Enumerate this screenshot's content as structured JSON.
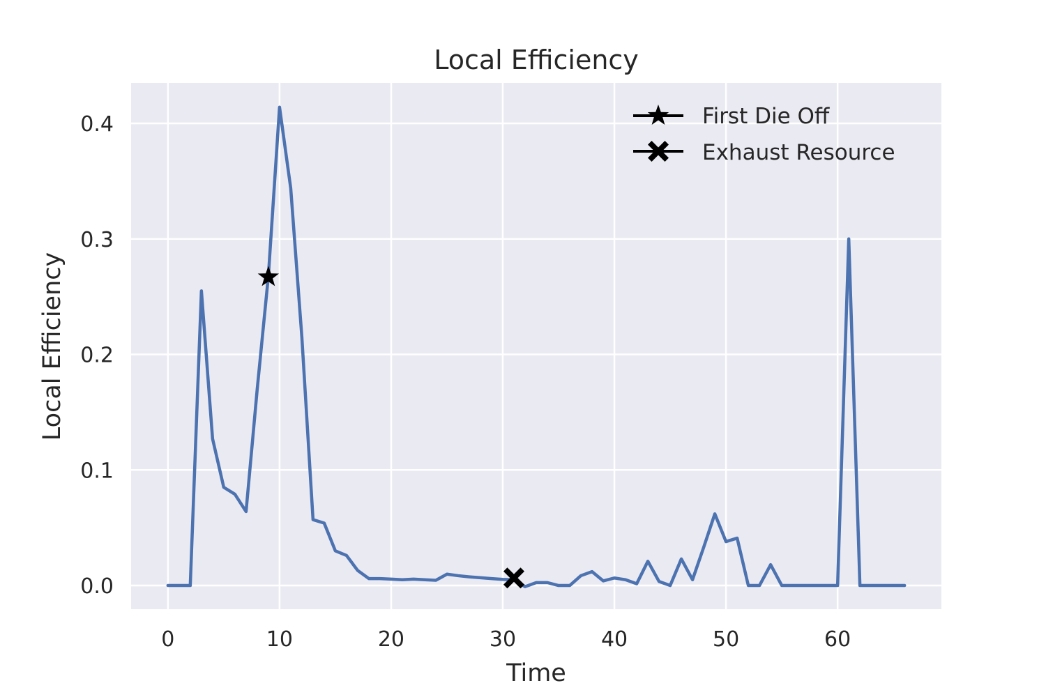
{
  "chart_data": {
    "type": "line",
    "title": "Local Efficiency",
    "xlabel": "Time",
    "ylabel": "Local Efficiency",
    "xlim": [
      -3.3,
      69.3
    ],
    "ylim": [
      -0.0205,
      0.435
    ],
    "xticks": [
      0,
      10,
      20,
      30,
      40,
      50,
      60
    ],
    "yticks": [
      0.0,
      0.1,
      0.2,
      0.3,
      0.4
    ],
    "xtick_labels": [
      "0",
      "10",
      "20",
      "30",
      "40",
      "50",
      "60"
    ],
    "ytick_labels": [
      "0.0",
      "0.1",
      "0.2",
      "0.3",
      "0.4"
    ],
    "grid": true,
    "legend_position": "top-right",
    "colors": {
      "background": "#eaeaf2",
      "grid": "#ffffff",
      "line": "#4c72b0",
      "marker": "#000000",
      "text": "#262626"
    },
    "series": [
      {
        "x": [
          0,
          1,
          2,
          3,
          4,
          5,
          6,
          7,
          8,
          9,
          10,
          11,
          12,
          13,
          14,
          15,
          16,
          17,
          18,
          19,
          20,
          21,
          22,
          23,
          24,
          25,
          26,
          27,
          28,
          29,
          30,
          31,
          32,
          33,
          34,
          35,
          36,
          37,
          38,
          39,
          40,
          41,
          42,
          43,
          44,
          45,
          46,
          47,
          48,
          49,
          50,
          51,
          52,
          53,
          54,
          55,
          56,
          57,
          58,
          59,
          60,
          61,
          62,
          63,
          64,
          65,
          66
        ],
        "values": [
          0,
          0,
          0,
          0.255,
          0.127,
          0.085,
          0.079,
          0.064,
          0.17,
          0.268,
          0.414,
          0.344,
          0.215,
          0.057,
          0.054,
          0.03,
          0.026,
          0.013,
          0.006,
          0.006,
          0.0055,
          0.005,
          0.0055,
          0.005,
          0.0045,
          0.0098,
          0.0085,
          0.0075,
          0.0067,
          0.006,
          0.0053,
          0.005,
          -0.001,
          0.0025,
          0.0025,
          0,
          0,
          0.0085,
          0.012,
          0.004,
          0.0065,
          0.005,
          0.0015,
          0.021,
          0.0035,
          0,
          0.023,
          0.005,
          0.033,
          0.062,
          0.038,
          0.041,
          0,
          0,
          0.018,
          0,
          0,
          0,
          0,
          0,
          0,
          0.3,
          0,
          0,
          0,
          0,
          0
        ]
      }
    ],
    "markers": [
      {
        "name": "First Die Off",
        "symbol": "star",
        "x": 9,
        "y": 0.267
      },
      {
        "name": "Exhaust Resource",
        "symbol": "x",
        "x": 31,
        "y": 0.0065
      }
    ]
  }
}
